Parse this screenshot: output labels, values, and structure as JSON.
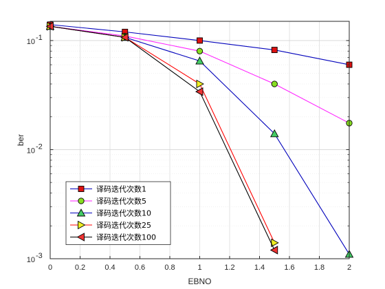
{
  "chart_data": {
    "type": "line",
    "xlabel": "EBNO",
    "ylabel": "ber",
    "xscale": "linear",
    "yscale": "log",
    "xlim": [
      0,
      2
    ],
    "ylim": [
      0.001,
      0.15
    ],
    "grid": "on (major and minor)",
    "legend_position": "bottom-left",
    "x_ticks": [
      "0",
      "0.2",
      "0.4",
      "0.6",
      "0.8",
      "1",
      "1.2",
      "1.4",
      "1.6",
      "1.8",
      "2"
    ],
    "y_ticks": [
      {
        "value": 0.001,
        "base": "10",
        "exp": "-3"
      },
      {
        "value": 0.01,
        "base": "10",
        "exp": "-2"
      },
      {
        "value": 0.1,
        "base": "10",
        "exp": "-1"
      }
    ],
    "series": [
      {
        "name": "译码迭代次数1",
        "marker": "square",
        "line_color": "#0000bb",
        "marker_color": "#dd1111",
        "x": [
          0,
          0.5,
          1,
          1.5,
          2
        ],
        "y": [
          0.14,
          0.12,
          0.1,
          0.082,
          0.06
        ]
      },
      {
        "name": "译码迭代次数5",
        "marker": "circle",
        "line_color": "#ff22ff",
        "marker_color": "#88dd22",
        "x": [
          0,
          0.5,
          1,
          1.5,
          2
        ],
        "y": [
          0.135,
          0.11,
          0.08,
          0.04,
          0.0175
        ]
      },
      {
        "name": "译码迭代次数10",
        "marker": "triangle-up",
        "line_color": "#0000bb",
        "marker_color": "#44cc66",
        "x": [
          0,
          0.5,
          1,
          1.5,
          2
        ],
        "y": [
          0.135,
          0.107,
          0.065,
          0.014,
          0.0011
        ]
      },
      {
        "name": "译码迭代次数25",
        "marker": "triangle-right",
        "line_color": "#ff0000",
        "marker_color": "#eeee22",
        "x": [
          0,
          0.5,
          1,
          1.5
        ],
        "y": [
          0.135,
          0.107,
          0.04,
          0.0014
        ]
      },
      {
        "name": "译码迭代次数100",
        "marker": "triangle-left",
        "line_color": "#000000",
        "marker_color": "#ee3333",
        "x": [
          0,
          0.5,
          1,
          1.5
        ],
        "y": [
          0.135,
          0.107,
          0.034,
          0.0012
        ]
      }
    ]
  }
}
